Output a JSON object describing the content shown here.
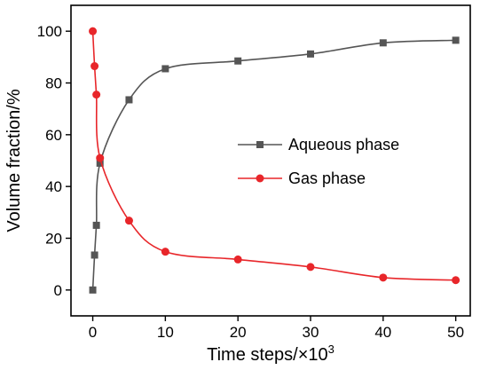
{
  "chart_data": {
    "type": "line",
    "title": "",
    "xlabel": "Time steps/×10",
    "xlabel_sup": "3",
    "ylabel": "Volume fraction/%",
    "xlim": [
      -3,
      52
    ],
    "ylim": [
      -10,
      110
    ],
    "xticks": [
      0,
      10,
      20,
      30,
      40,
      50
    ],
    "yticks": [
      0,
      20,
      40,
      60,
      80,
      100
    ],
    "grid": false,
    "legend_position": "center-right",
    "series": [
      {
        "name": "Aqueous phase",
        "color": "#555555",
        "marker": "square",
        "x": [
          0,
          0.25,
          0.5,
          1,
          5,
          10,
          20,
          30,
          40,
          50
        ],
        "y": [
          0,
          13.5,
          25,
          49,
          73.5,
          85.5,
          88.5,
          91.2,
          95.5,
          96.5
        ]
      },
      {
        "name": "Gas phase",
        "color": "#e8262a",
        "marker": "circle",
        "x": [
          0,
          0.25,
          0.5,
          1,
          5,
          10,
          20,
          30,
          40,
          50
        ],
        "y": [
          100,
          86.5,
          75.5,
          51,
          26.8,
          14.8,
          11.8,
          8.9,
          4.8,
          3.8
        ]
      }
    ]
  }
}
